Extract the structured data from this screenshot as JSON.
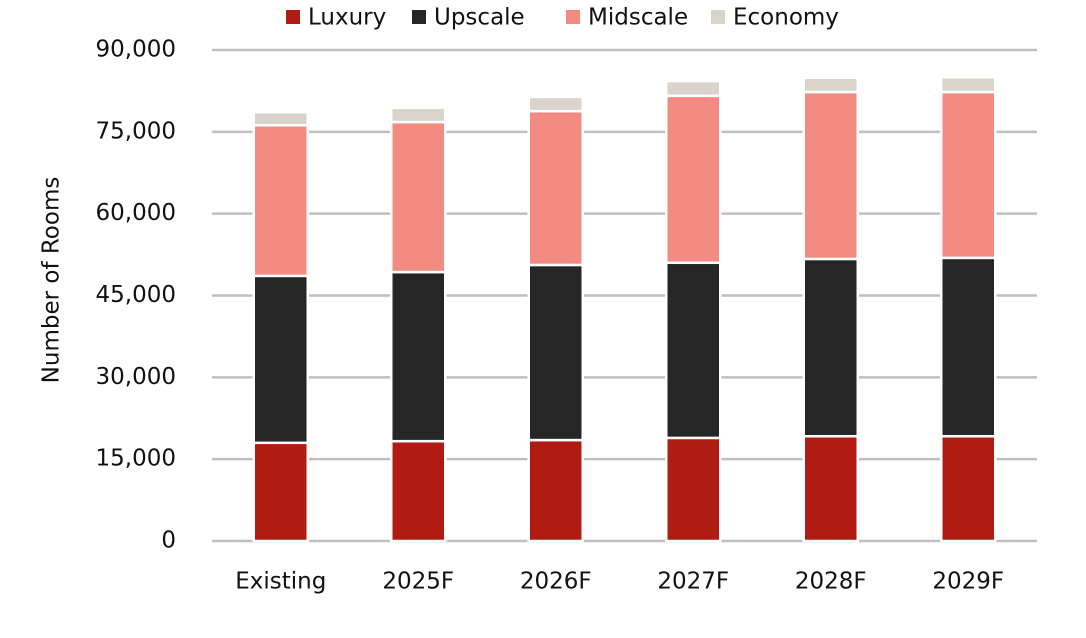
{
  "chart_data": {
    "type": "stacked_bar",
    "y_label": "Number of Rooms",
    "categories": [
      "Existing",
      "2025F",
      "2026F",
      "2027F",
      "2028F",
      "2029F"
    ],
    "series": [
      {
        "name": "Luxury",
        "color": "#b01c14",
        "values": [
          18000,
          18300,
          18500,
          18900,
          19200,
          19200
        ]
      },
      {
        "name": "Upscale",
        "color": "#262626",
        "values": [
          30600,
          31000,
          32100,
          32100,
          32500,
          32700
        ]
      },
      {
        "name": "Midscale",
        "color": "#f28b82",
        "values": [
          27600,
          27500,
          28200,
          30600,
          30600,
          30400
        ]
      },
      {
        "name": "Economy",
        "color": "#d9d3cb",
        "values": [
          2400,
          2600,
          2600,
          2700,
          2600,
          2700
        ]
      }
    ],
    "ylim": [
      0,
      90000
    ],
    "yticks": [
      0,
      {
        "value": 15000,
        "label": "15,000"
      },
      {
        "value": 30000,
        "label": "30,000"
      },
      {
        "value": 45000,
        "label": "45,000"
      },
      {
        "value": 60000,
        "label": "60,000"
      },
      {
        "value": 75000,
        "label": "75,000"
      },
      {
        "value": 90000,
        "label": "90,000"
      }
    ],
    "grid": true,
    "legend": "top"
  }
}
